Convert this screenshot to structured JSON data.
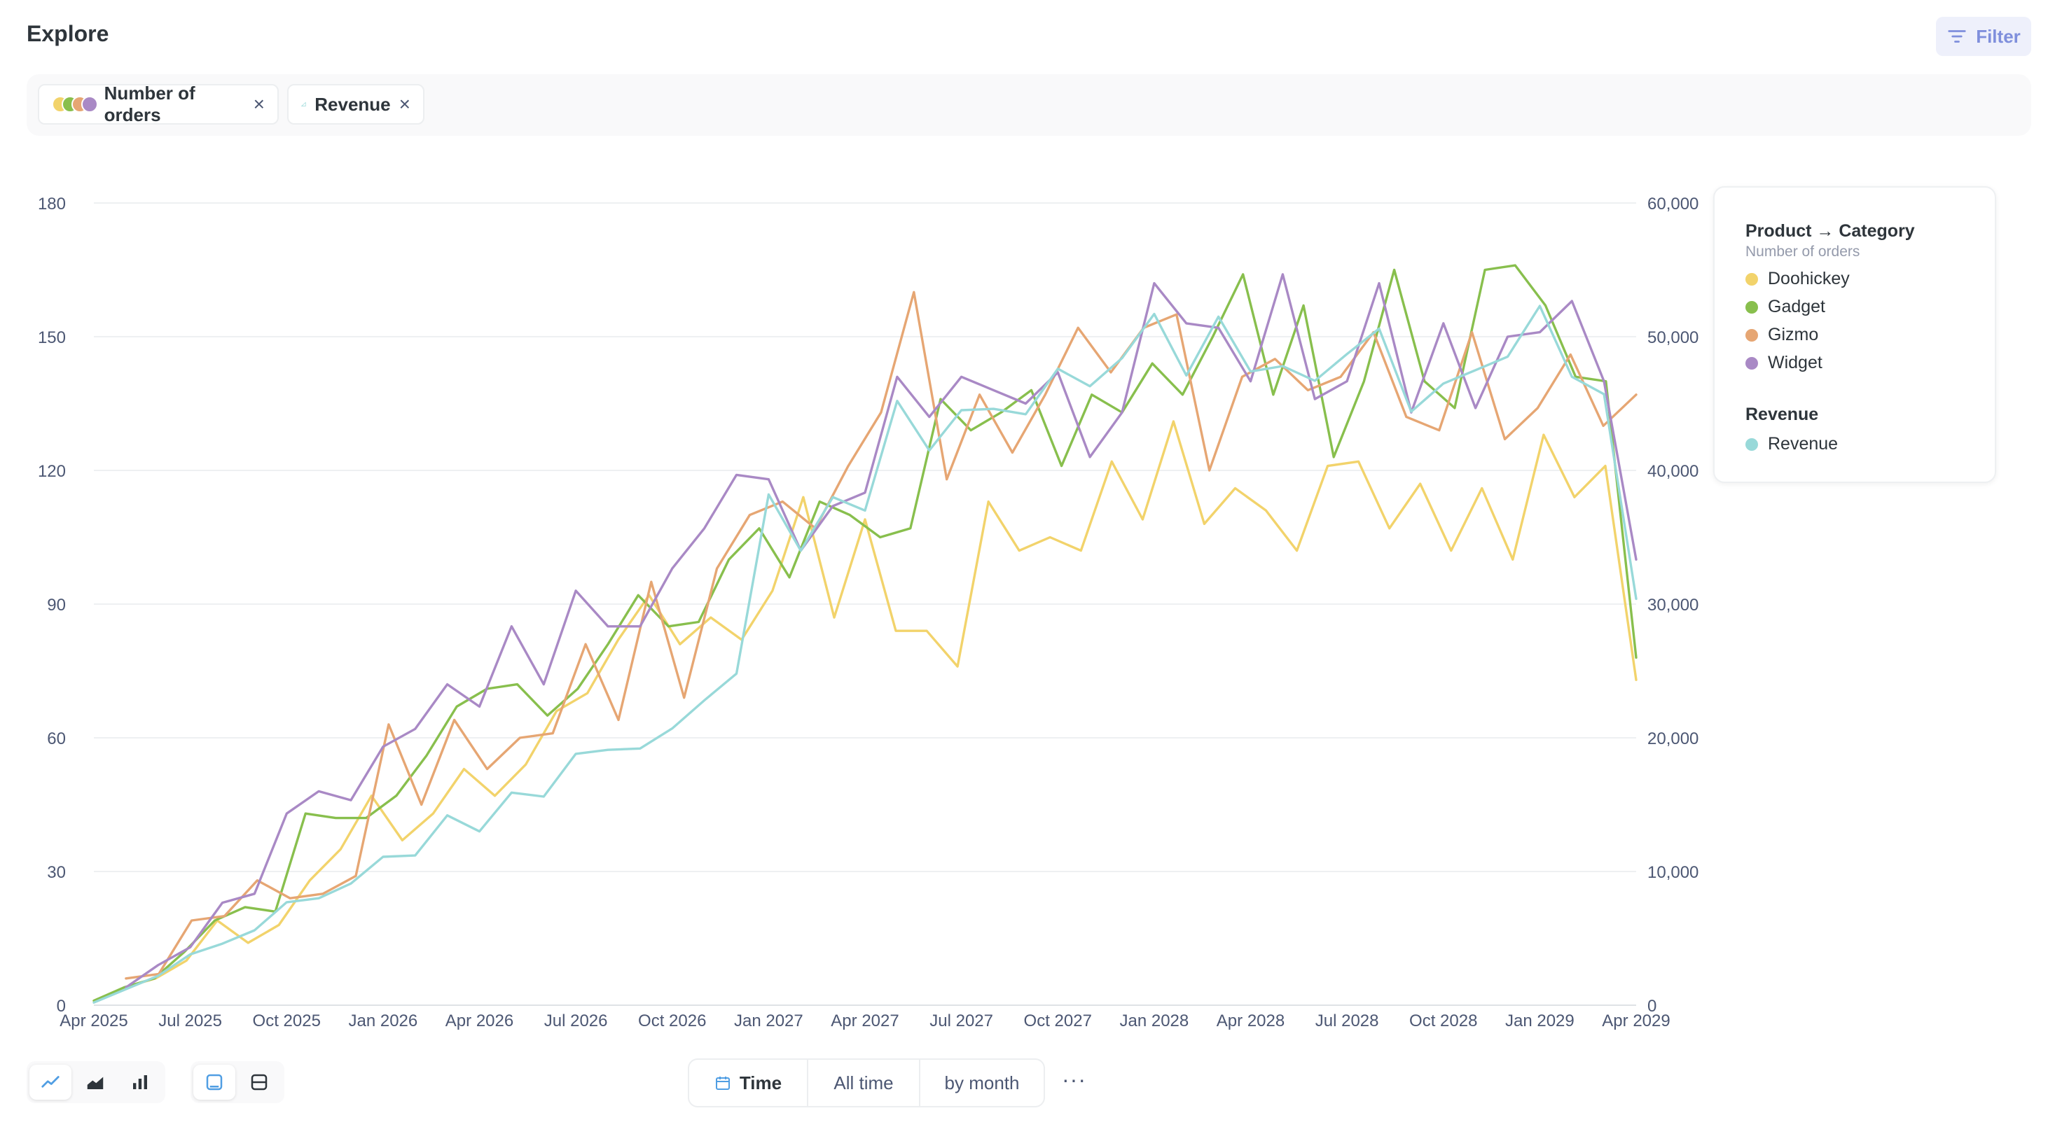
{
  "header": {
    "title": "Explore",
    "filter_label": "Filter"
  },
  "pills": [
    {
      "label": "Number of orders",
      "close": "×"
    },
    {
      "label": "Revenue",
      "close": "×"
    }
  ],
  "legend": {
    "group1_title": "Product → Category",
    "group1_sub": "Number of orders",
    "group1_items": [
      "Doohickey",
      "Gadget",
      "Gizmo",
      "Widget"
    ],
    "group2_title": "Revenue",
    "group2_items": [
      "Revenue"
    ]
  },
  "bottom": {
    "time_label": "Time",
    "range_label": "All time",
    "unit_label": "by month",
    "more": "···"
  },
  "colors": {
    "Doohickey": "#f2d36b",
    "Gadget": "#88bf4d",
    "Gizmo": "#e6a673",
    "Widget": "#a989c5",
    "Revenue": "#98d9d9",
    "accent": "#7f8fdc"
  },
  "chart_data": {
    "type": "line",
    "x_ticks": [
      "Apr 2025",
      "Jul 2025",
      "Oct 2025",
      "Jan 2026",
      "Apr 2026",
      "Jul 2026",
      "Oct 2026",
      "Jan 2027",
      "Apr 2027",
      "Jul 2027",
      "Oct 2027",
      "Jan 2028",
      "Apr 2028",
      "Jul 2028",
      "Oct 2028",
      "Jan 2029",
      "Apr 2029"
    ],
    "x_start": "Apr 2025",
    "x_end": "Apr 2029",
    "y_left": {
      "ticks": [
        0,
        30,
        60,
        90,
        120,
        150,
        180
      ],
      "range": [
        0,
        180
      ]
    },
    "y_right": {
      "ticks": [
        "0",
        "10,000",
        "20,000",
        "30,000",
        "40,000",
        "50,000",
        "60,000"
      ],
      "range": [
        0,
        60000
      ]
    },
    "grid": true,
    "legend_position": "top-right",
    "series": [
      {
        "name": "Doohickey",
        "axis": "left",
        "start_month": 0,
        "values": [
          1,
          4,
          6,
          10,
          19,
          14,
          18,
          28,
          35,
          47,
          37,
          43,
          53,
          47,
          54,
          66,
          70,
          82,
          92,
          81,
          87,
          82,
          93,
          114,
          87,
          109,
          84,
          84,
          76,
          113,
          102,
          105,
          102,
          122,
          109,
          131,
          108,
          116,
          111,
          102,
          121,
          122,
          107,
          117,
          102,
          116,
          100,
          128,
          114,
          121,
          73
        ]
      },
      {
        "name": "Gadget",
        "axis": "left",
        "start_month": 0,
        "values": [
          1,
          4,
          6,
          12,
          19,
          22,
          21,
          43,
          42,
          42,
          47,
          56,
          67,
          71,
          72,
          65,
          71,
          81,
          92,
          85,
          86,
          100,
          107,
          96,
          113,
          110,
          105,
          107,
          136,
          129,
          133,
          138,
          121,
          137,
          133,
          144,
          137,
          150,
          164,
          137,
          157,
          123,
          140,
          165,
          140,
          134,
          165,
          166,
          157,
          141,
          140,
          78
        ]
      },
      {
        "name": "Gizmo",
        "axis": "left",
        "start_month": 1,
        "values": [
          6,
          7,
          19,
          20,
          28,
          24,
          25,
          29,
          63,
          45,
          64,
          53,
          60,
          61,
          81,
          64,
          95,
          69,
          98,
          110,
          113,
          107,
          121,
          133,
          160,
          118,
          137,
          124,
          137,
          152,
          142,
          152,
          155,
          120,
          141,
          145,
          138,
          141,
          151,
          132,
          129,
          151,
          127,
          134,
          146,
          130,
          137
        ]
      },
      {
        "name": "Widget",
        "axis": "left",
        "start_month": 1,
        "values": [
          4,
          9,
          13,
          23,
          25,
          43,
          48,
          46,
          58,
          62,
          72,
          67,
          85,
          72,
          93,
          85,
          85,
          98,
          107,
          119,
          118,
          102,
          112,
          115,
          141,
          132,
          141,
          138,
          135,
          142,
          123,
          133,
          162,
          153,
          152,
          140,
          164,
          136,
          140,
          162,
          133,
          153,
          134,
          150,
          151,
          158,
          140,
          100
        ]
      },
      {
        "name": "Revenue",
        "axis": "right",
        "start_month": 0,
        "values": [
          200,
          1200,
          2200,
          3800,
          4600,
          5600,
          7700,
          8000,
          9100,
          11100,
          11200,
          14200,
          13000,
          15900,
          15600,
          18800,
          19100,
          19200,
          20700,
          22800,
          24800,
          38200,
          34000,
          38000,
          37000,
          45200,
          41500,
          44500,
          44600,
          44200,
          47600,
          46300,
          48400,
          51700,
          47100,
          51500,
          47400,
          47800,
          46700,
          48700,
          50600,
          44400,
          46500,
          47500,
          48500,
          52300,
          47000,
          45700,
          30400
        ]
      }
    ]
  }
}
